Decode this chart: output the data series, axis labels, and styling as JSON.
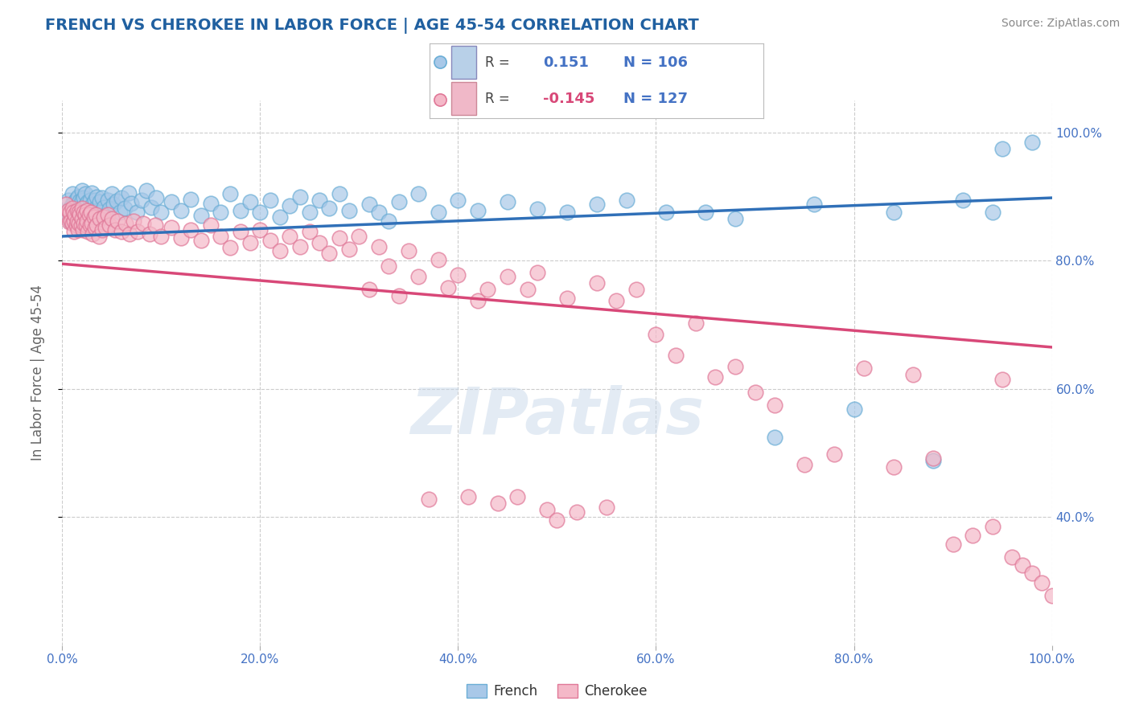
{
  "title": "FRENCH VS CHEROKEE IN LABOR FORCE | AGE 45-54 CORRELATION CHART",
  "source": "Source: ZipAtlas.com",
  "ylabel": "In Labor Force | Age 45-54",
  "french_R": 0.151,
  "french_N": 106,
  "cherokee_R": -0.145,
  "cherokee_N": 127,
  "french_color": "#a8c8e8",
  "french_edge_color": "#6baed6",
  "cherokee_color": "#f4b8c8",
  "cherokee_edge_color": "#e07898",
  "french_line_color": "#3070b8",
  "cherokee_line_color": "#d84878",
  "watermark": "ZIPatlas",
  "background_color": "#ffffff",
  "grid_color": "#cccccc",
  "title_color": "#2060a0",
  "axis_label_color": "#666666",
  "tick_label_color": "#4472c4",
  "source_color": "#888888",
  "legend_rect_french_face": "#b8d0e8",
  "legend_rect_french_edge": "#8888bb",
  "legend_rect_cherokee_face": "#f0b8c8",
  "legend_rect_cherokee_edge": "#cc8898",
  "french_line_intercept": 0.838,
  "french_line_slope": 0.06,
  "cherokee_line_intercept": 0.795,
  "cherokee_line_slope": -0.13,
  "french_points": [
    [
      0.004,
      0.875
    ],
    [
      0.006,
      0.895
    ],
    [
      0.007,
      0.87
    ],
    [
      0.008,
      0.882
    ],
    [
      0.009,
      0.86
    ],
    [
      0.01,
      0.905
    ],
    [
      0.01,
      0.888
    ],
    [
      0.011,
      0.875
    ],
    [
      0.012,
      0.891
    ],
    [
      0.013,
      0.878
    ],
    [
      0.013,
      0.86
    ],
    [
      0.014,
      0.896
    ],
    [
      0.015,
      0.883
    ],
    [
      0.015,
      0.868
    ],
    [
      0.016,
      0.9
    ],
    [
      0.017,
      0.886
    ],
    [
      0.017,
      0.872
    ],
    [
      0.018,
      0.893
    ],
    [
      0.019,
      0.879
    ],
    [
      0.02,
      0.91
    ],
    [
      0.02,
      0.895
    ],
    [
      0.021,
      0.882
    ],
    [
      0.022,
      0.898
    ],
    [
      0.022,
      0.875
    ],
    [
      0.023,
      0.905
    ],
    [
      0.024,
      0.888
    ],
    [
      0.025,
      0.875
    ],
    [
      0.025,
      0.862
    ],
    [
      0.026,
      0.892
    ],
    [
      0.027,
      0.879
    ],
    [
      0.028,
      0.895
    ],
    [
      0.029,
      0.87
    ],
    [
      0.03,
      0.906
    ],
    [
      0.031,
      0.888
    ],
    [
      0.032,
      0.876
    ],
    [
      0.033,
      0.895
    ],
    [
      0.034,
      0.882
    ],
    [
      0.035,
      0.9
    ],
    [
      0.036,
      0.878
    ],
    [
      0.038,
      0.892
    ],
    [
      0.039,
      0.875
    ],
    [
      0.04,
      0.898
    ],
    [
      0.042,
      0.883
    ],
    [
      0.044,
      0.87
    ],
    [
      0.046,
      0.895
    ],
    [
      0.048,
      0.88
    ],
    [
      0.05,
      0.905
    ],
    [
      0.052,
      0.888
    ],
    [
      0.055,
      0.893
    ],
    [
      0.058,
      0.876
    ],
    [
      0.06,
      0.898
    ],
    [
      0.063,
      0.882
    ],
    [
      0.067,
      0.906
    ],
    [
      0.07,
      0.889
    ],
    [
      0.075,
      0.875
    ],
    [
      0.08,
      0.895
    ],
    [
      0.085,
      0.91
    ],
    [
      0.09,
      0.883
    ],
    [
      0.095,
      0.898
    ],
    [
      0.1,
      0.875
    ],
    [
      0.11,
      0.892
    ],
    [
      0.12,
      0.878
    ],
    [
      0.13,
      0.896
    ],
    [
      0.14,
      0.87
    ],
    [
      0.15,
      0.889
    ],
    [
      0.16,
      0.875
    ],
    [
      0.17,
      0.905
    ],
    [
      0.18,
      0.878
    ],
    [
      0.19,
      0.892
    ],
    [
      0.2,
      0.875
    ],
    [
      0.21,
      0.895
    ],
    [
      0.22,
      0.868
    ],
    [
      0.23,
      0.885
    ],
    [
      0.24,
      0.899
    ],
    [
      0.25,
      0.875
    ],
    [
      0.26,
      0.895
    ],
    [
      0.27,
      0.882
    ],
    [
      0.28,
      0.905
    ],
    [
      0.29,
      0.878
    ],
    [
      0.31,
      0.888
    ],
    [
      0.32,
      0.875
    ],
    [
      0.33,
      0.862
    ],
    [
      0.34,
      0.892
    ],
    [
      0.36,
      0.905
    ],
    [
      0.38,
      0.875
    ],
    [
      0.4,
      0.895
    ],
    [
      0.42,
      0.878
    ],
    [
      0.45,
      0.892
    ],
    [
      0.48,
      0.88
    ],
    [
      0.51,
      0.875
    ],
    [
      0.54,
      0.888
    ],
    [
      0.57,
      0.895
    ],
    [
      0.61,
      0.875
    ],
    [
      0.65,
      0.875
    ],
    [
      0.68,
      0.865
    ],
    [
      0.72,
      0.525
    ],
    [
      0.76,
      0.888
    ],
    [
      0.8,
      0.568
    ],
    [
      0.84,
      0.875
    ],
    [
      0.88,
      0.488
    ],
    [
      0.91,
      0.895
    ],
    [
      0.94,
      0.875
    ],
    [
      0.95,
      0.975
    ],
    [
      0.98,
      0.985
    ]
  ],
  "cherokee_points": [
    [
      0.004,
      0.888
    ],
    [
      0.005,
      0.87
    ],
    [
      0.006,
      0.878
    ],
    [
      0.007,
      0.86
    ],
    [
      0.008,
      0.875
    ],
    [
      0.009,
      0.862
    ],
    [
      0.01,
      0.882
    ],
    [
      0.01,
      0.858
    ],
    [
      0.011,
      0.875
    ],
    [
      0.012,
      0.862
    ],
    [
      0.012,
      0.845
    ],
    [
      0.013,
      0.872
    ],
    [
      0.014,
      0.855
    ],
    [
      0.015,
      0.878
    ],
    [
      0.015,
      0.862
    ],
    [
      0.016,
      0.848
    ],
    [
      0.017,
      0.875
    ],
    [
      0.017,
      0.858
    ],
    [
      0.018,
      0.872
    ],
    [
      0.019,
      0.855
    ],
    [
      0.02,
      0.882
    ],
    [
      0.02,
      0.865
    ],
    [
      0.021,
      0.848
    ],
    [
      0.022,
      0.875
    ],
    [
      0.022,
      0.858
    ],
    [
      0.023,
      0.872
    ],
    [
      0.024,
      0.855
    ],
    [
      0.025,
      0.878
    ],
    [
      0.025,
      0.862
    ],
    [
      0.026,
      0.845
    ],
    [
      0.027,
      0.872
    ],
    [
      0.028,
      0.855
    ],
    [
      0.029,
      0.875
    ],
    [
      0.03,
      0.858
    ],
    [
      0.031,
      0.842
    ],
    [
      0.032,
      0.868
    ],
    [
      0.033,
      0.852
    ],
    [
      0.034,
      0.872
    ],
    [
      0.035,
      0.855
    ],
    [
      0.037,
      0.838
    ],
    [
      0.038,
      0.865
    ],
    [
      0.04,
      0.848
    ],
    [
      0.042,
      0.868
    ],
    [
      0.044,
      0.852
    ],
    [
      0.046,
      0.872
    ],
    [
      0.048,
      0.855
    ],
    [
      0.05,
      0.865
    ],
    [
      0.053,
      0.848
    ],
    [
      0.056,
      0.862
    ],
    [
      0.06,
      0.845
    ],
    [
      0.064,
      0.858
    ],
    [
      0.068,
      0.842
    ],
    [
      0.072,
      0.862
    ],
    [
      0.076,
      0.845
    ],
    [
      0.082,
      0.858
    ],
    [
      0.088,
      0.842
    ],
    [
      0.094,
      0.855
    ],
    [
      0.1,
      0.838
    ],
    [
      0.11,
      0.852
    ],
    [
      0.12,
      0.835
    ],
    [
      0.13,
      0.848
    ],
    [
      0.14,
      0.832
    ],
    [
      0.15,
      0.855
    ],
    [
      0.16,
      0.838
    ],
    [
      0.17,
      0.82
    ],
    [
      0.18,
      0.845
    ],
    [
      0.19,
      0.828
    ],
    [
      0.2,
      0.848
    ],
    [
      0.21,
      0.832
    ],
    [
      0.22,
      0.815
    ],
    [
      0.23,
      0.838
    ],
    [
      0.24,
      0.822
    ],
    [
      0.25,
      0.845
    ],
    [
      0.26,
      0.828
    ],
    [
      0.27,
      0.812
    ],
    [
      0.28,
      0.835
    ],
    [
      0.29,
      0.818
    ],
    [
      0.3,
      0.838
    ],
    [
      0.31,
      0.755
    ],
    [
      0.32,
      0.822
    ],
    [
      0.33,
      0.792
    ],
    [
      0.34,
      0.745
    ],
    [
      0.35,
      0.815
    ],
    [
      0.36,
      0.775
    ],
    [
      0.37,
      0.428
    ],
    [
      0.38,
      0.802
    ],
    [
      0.39,
      0.758
    ],
    [
      0.4,
      0.778
    ],
    [
      0.41,
      0.432
    ],
    [
      0.42,
      0.738
    ],
    [
      0.43,
      0.755
    ],
    [
      0.44,
      0.422
    ],
    [
      0.45,
      0.775
    ],
    [
      0.46,
      0.432
    ],
    [
      0.47,
      0.755
    ],
    [
      0.48,
      0.782
    ],
    [
      0.49,
      0.412
    ],
    [
      0.5,
      0.395
    ],
    [
      0.51,
      0.742
    ],
    [
      0.52,
      0.408
    ],
    [
      0.54,
      0.765
    ],
    [
      0.55,
      0.415
    ],
    [
      0.56,
      0.738
    ],
    [
      0.58,
      0.755
    ],
    [
      0.6,
      0.685
    ],
    [
      0.62,
      0.652
    ],
    [
      0.64,
      0.702
    ],
    [
      0.66,
      0.618
    ],
    [
      0.68,
      0.635
    ],
    [
      0.7,
      0.595
    ],
    [
      0.72,
      0.575
    ],
    [
      0.75,
      0.482
    ],
    [
      0.78,
      0.498
    ],
    [
      0.81,
      0.632
    ],
    [
      0.84,
      0.478
    ],
    [
      0.86,
      0.622
    ],
    [
      0.88,
      0.492
    ],
    [
      0.9,
      0.358
    ],
    [
      0.92,
      0.372
    ],
    [
      0.94,
      0.385
    ],
    [
      0.95,
      0.615
    ],
    [
      0.96,
      0.338
    ],
    [
      0.97,
      0.325
    ],
    [
      0.98,
      0.312
    ],
    [
      0.99,
      0.298
    ],
    [
      1.0,
      0.278
    ]
  ]
}
